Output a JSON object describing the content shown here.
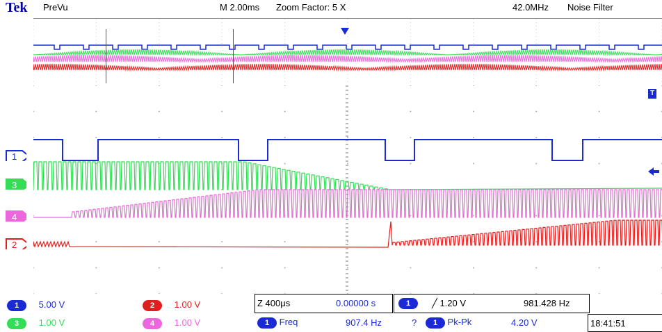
{
  "header": {
    "brand": "Tek",
    "mode": "PreVu",
    "timebase": "M 2.00ms",
    "zoom": "Zoom Factor: 5 X",
    "bandwidth": "42.0MHz",
    "filter": "Noise Filter"
  },
  "channels": [
    {
      "id": "1",
      "scale": "5.00 V",
      "color": "#1a2bd6"
    },
    {
      "id": "2",
      "scale": "1.00 V",
      "color": "#e02020"
    },
    {
      "id": "3",
      "scale": "1.00 V",
      "color": "#33dd55"
    },
    {
      "id": "4",
      "scale": "1.00 V",
      "color": "#ee66dd"
    }
  ],
  "zoom_panel": {
    "z_scale": "Z 400μs",
    "position": "0.00000 s"
  },
  "trigger": {
    "channel": "1",
    "level": "╱ 1.20 V",
    "frequency": "981.428 Hz"
  },
  "measurements": [
    {
      "channel": "1",
      "name": "Freq",
      "value": "907.4 Hz",
      "flag": "?"
    },
    {
      "channel": "1",
      "name": "Pk-Pk",
      "value": "4.20 V"
    }
  ],
  "clock": "18:41:51",
  "trigger_marker": "T"
}
